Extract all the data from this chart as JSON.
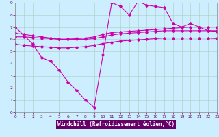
{
  "xlabel": "Windchill (Refroidissement éolien,°C)",
  "background_color": "#cceeff",
  "grid_color": "#aaccbb",
  "line_color": "#cc00aa",
  "label_bar_color": "#660066",
  "label_text_color": "#ffffff",
  "tick_color": "#660066",
  "xlim": [
    0,
    23
  ],
  "ylim": [
    0,
    9
  ],
  "xticks": [
    0,
    1,
    2,
    3,
    4,
    5,
    6,
    7,
    8,
    9,
    10,
    11,
    12,
    13,
    14,
    15,
    16,
    17,
    18,
    19,
    20,
    21,
    22,
    23
  ],
  "yticks": [
    0,
    1,
    2,
    3,
    4,
    5,
    6,
    7,
    8,
    9
  ],
  "line1_x": [
    0,
    1,
    2,
    3,
    4,
    5,
    6,
    7,
    8,
    9,
    10,
    11,
    12,
    13,
    14,
    15,
    16,
    17,
    18,
    19,
    20,
    21,
    22,
    23
  ],
  "line1_y": [
    7.0,
    6.3,
    5.6,
    4.5,
    4.2,
    3.5,
    2.5,
    1.8,
    1.0,
    0.4,
    4.7,
    9.0,
    8.7,
    8.0,
    9.1,
    8.8,
    8.7,
    8.6,
    7.3,
    7.0,
    7.3,
    7.0,
    6.7,
    6.7
  ],
  "line2_x": [
    0,
    1,
    2,
    3,
    4,
    5,
    6,
    7,
    8,
    9,
    10,
    11,
    12,
    13,
    14,
    15,
    16,
    17,
    18,
    19,
    20,
    21,
    22,
    23
  ],
  "line2_y": [
    6.5,
    6.4,
    6.3,
    6.2,
    6.1,
    6.0,
    6.0,
    6.05,
    6.1,
    6.2,
    6.4,
    6.55,
    6.6,
    6.65,
    6.7,
    6.75,
    6.8,
    6.85,
    6.9,
    6.95,
    7.0,
    7.0,
    7.0,
    7.0
  ],
  "line3_x": [
    0,
    1,
    2,
    3,
    4,
    5,
    6,
    7,
    8,
    9,
    10,
    11,
    12,
    13,
    14,
    15,
    16,
    17,
    18,
    19,
    20,
    21,
    22,
    23
  ],
  "line3_y": [
    6.2,
    6.2,
    6.15,
    6.1,
    6.05,
    6.0,
    6.0,
    6.0,
    6.0,
    6.05,
    6.2,
    6.35,
    6.45,
    6.5,
    6.55,
    6.6,
    6.65,
    6.7,
    6.7,
    6.7,
    6.7,
    6.7,
    6.7,
    6.65
  ],
  "line4_x": [
    0,
    1,
    2,
    3,
    4,
    5,
    6,
    7,
    8,
    9,
    10,
    11,
    12,
    13,
    14,
    15,
    16,
    17,
    18,
    19,
    20,
    21,
    22,
    23
  ],
  "line4_y": [
    5.6,
    5.5,
    5.45,
    5.4,
    5.35,
    5.3,
    5.3,
    5.35,
    5.4,
    5.5,
    5.65,
    5.75,
    5.85,
    5.9,
    5.95,
    6.0,
    6.05,
    6.1,
    6.1,
    6.1,
    6.1,
    6.1,
    6.1,
    6.05
  ]
}
